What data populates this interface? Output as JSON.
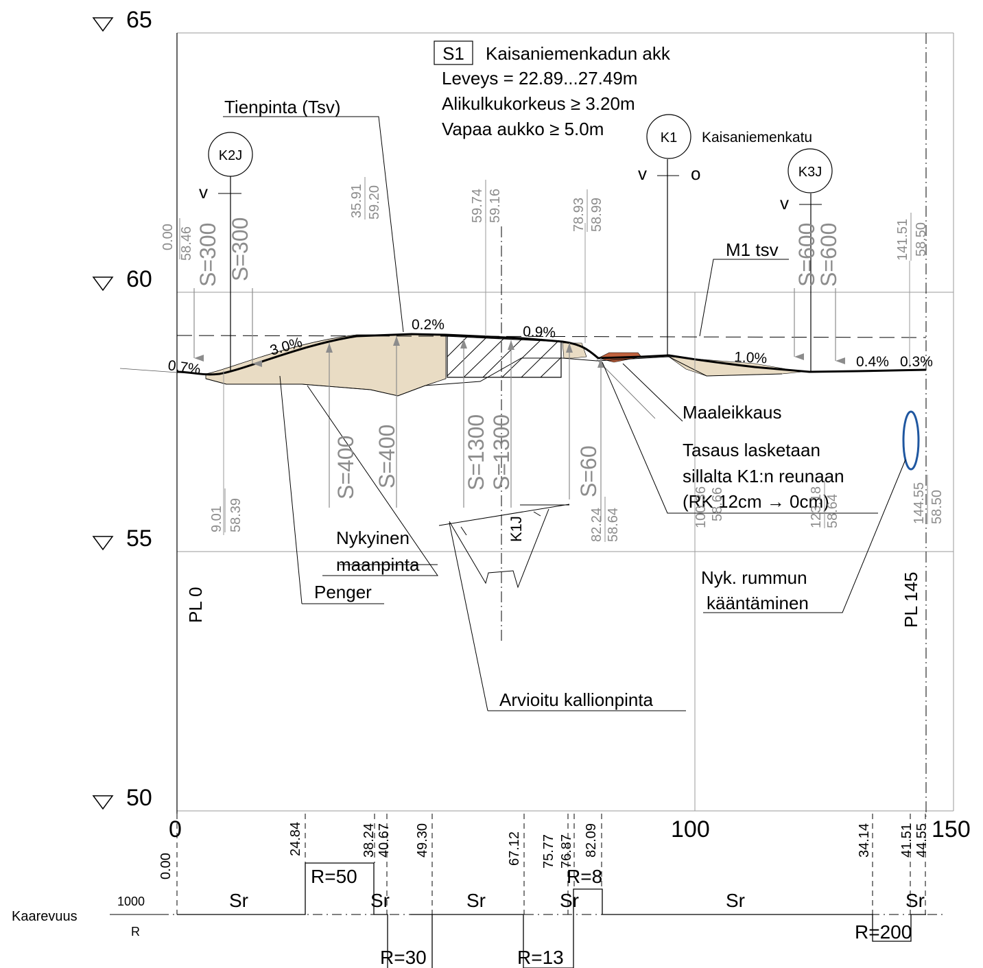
{
  "colors": {
    "line": "#000000",
    "grid": "#9a9a9a",
    "gray_text": "#8c8c8c",
    "fill": "#e9dcc4",
    "red_fill": "#c0623e",
    "blue": "#1f57a0"
  },
  "elevations": {
    "e65": "65",
    "e60": "60",
    "e55": "55",
    "e50": "50"
  },
  "axis": {
    "x0": "0",
    "x100": "100",
    "x150": "150"
  },
  "boxes": {
    "s1": "S1",
    "k2j": "K2J",
    "k1": "K1",
    "k3j": "K3J"
  },
  "labels": {
    "s1_title": "Kaisaniemenkadun akk",
    "s1_width": "Leveys = 22.89...27.49m",
    "s1_clearance": "Alikulkukorkeus ≥ 3.20m",
    "s1_opening": "Vapaa aukko ≥ 5.0m",
    "kaisaniemenkatu": "Kaisaniemenkatu",
    "tienpinta": "Tienpinta (Tsv)",
    "m1_tsv": "M1 tsv",
    "v_left": "v",
    "v_k1": "v",
    "o_k1": "o",
    "v_k3j": "v",
    "maaleikkaus": "Maaleikkaus",
    "tasaus1": "Tasaus lasketaan",
    "tasaus2": "sillalta K1:n reunaan",
    "tasaus3": "(RK 12cm → 0cm)",
    "nykyinen1": "Nykyinen",
    "nykyinen2": "maanpinta",
    "penger": "Penger",
    "rumpu1": "Nyk. rummun",
    "rumpu2": "kääntäminen",
    "kallio": "Arvioitu kallionpinta",
    "pl0": "PL 0",
    "pl145": "PL 145",
    "k1j": "K1J",
    "kaarevuus": "Kaarevuus",
    "k_1000": "1000",
    "k_r": "R"
  },
  "grades": {
    "g07": "0.7%",
    "g30": "3.0%",
    "g02": "0.2%",
    "g09": "0.9%",
    "g10": "1.0%",
    "g04": "0.4%",
    "g03": "0.3%"
  },
  "vc": {
    "s300a": "S=300",
    "s300b": "S=300",
    "s400a": "S=400",
    "s400b": "S=400",
    "s1300a": "S=1300",
    "s1300b": "S=1300",
    "s60": "S=60",
    "s600a": "S=600",
    "s600b": "S=600"
  },
  "stations": {
    "a1": "0.00",
    "a2": "58.46",
    "b1": "35.91",
    "b2": "59.20",
    "c1": "59.74",
    "c2": "59.16",
    "d1": "78.93",
    "d2": "58.99",
    "e1": "141.51",
    "e2": "58.50",
    "f1": "9.01",
    "f2": "58.39",
    "g1": "82.24",
    "g2": "58.64",
    "h1": "123.18",
    "h2": "58.64",
    "i1": "144.55",
    "i2": "58.50",
    "j1": "100.36",
    "j2": "58.66"
  },
  "curvature": {
    "c000": "0.00",
    "c2484": "24.84",
    "c3824": "38.24",
    "c4067": "40.67",
    "c4930": "49.30",
    "c6712": "67.12",
    "c7577": "75.77",
    "c7687": "76.87",
    "c8209": "82.09",
    "c3414": "34.14",
    "c4151": "41.51",
    "c4455": "44.55",
    "sr1": "Sr",
    "sr2": "Sr",
    "sr3": "Sr",
    "sr4": "Sr",
    "sr5": "Sr",
    "sr6": "Sr",
    "r50": "R=50",
    "r30": "R=30",
    "r13": "R=13",
    "r8": "R=8",
    "r200": "R=200"
  }
}
